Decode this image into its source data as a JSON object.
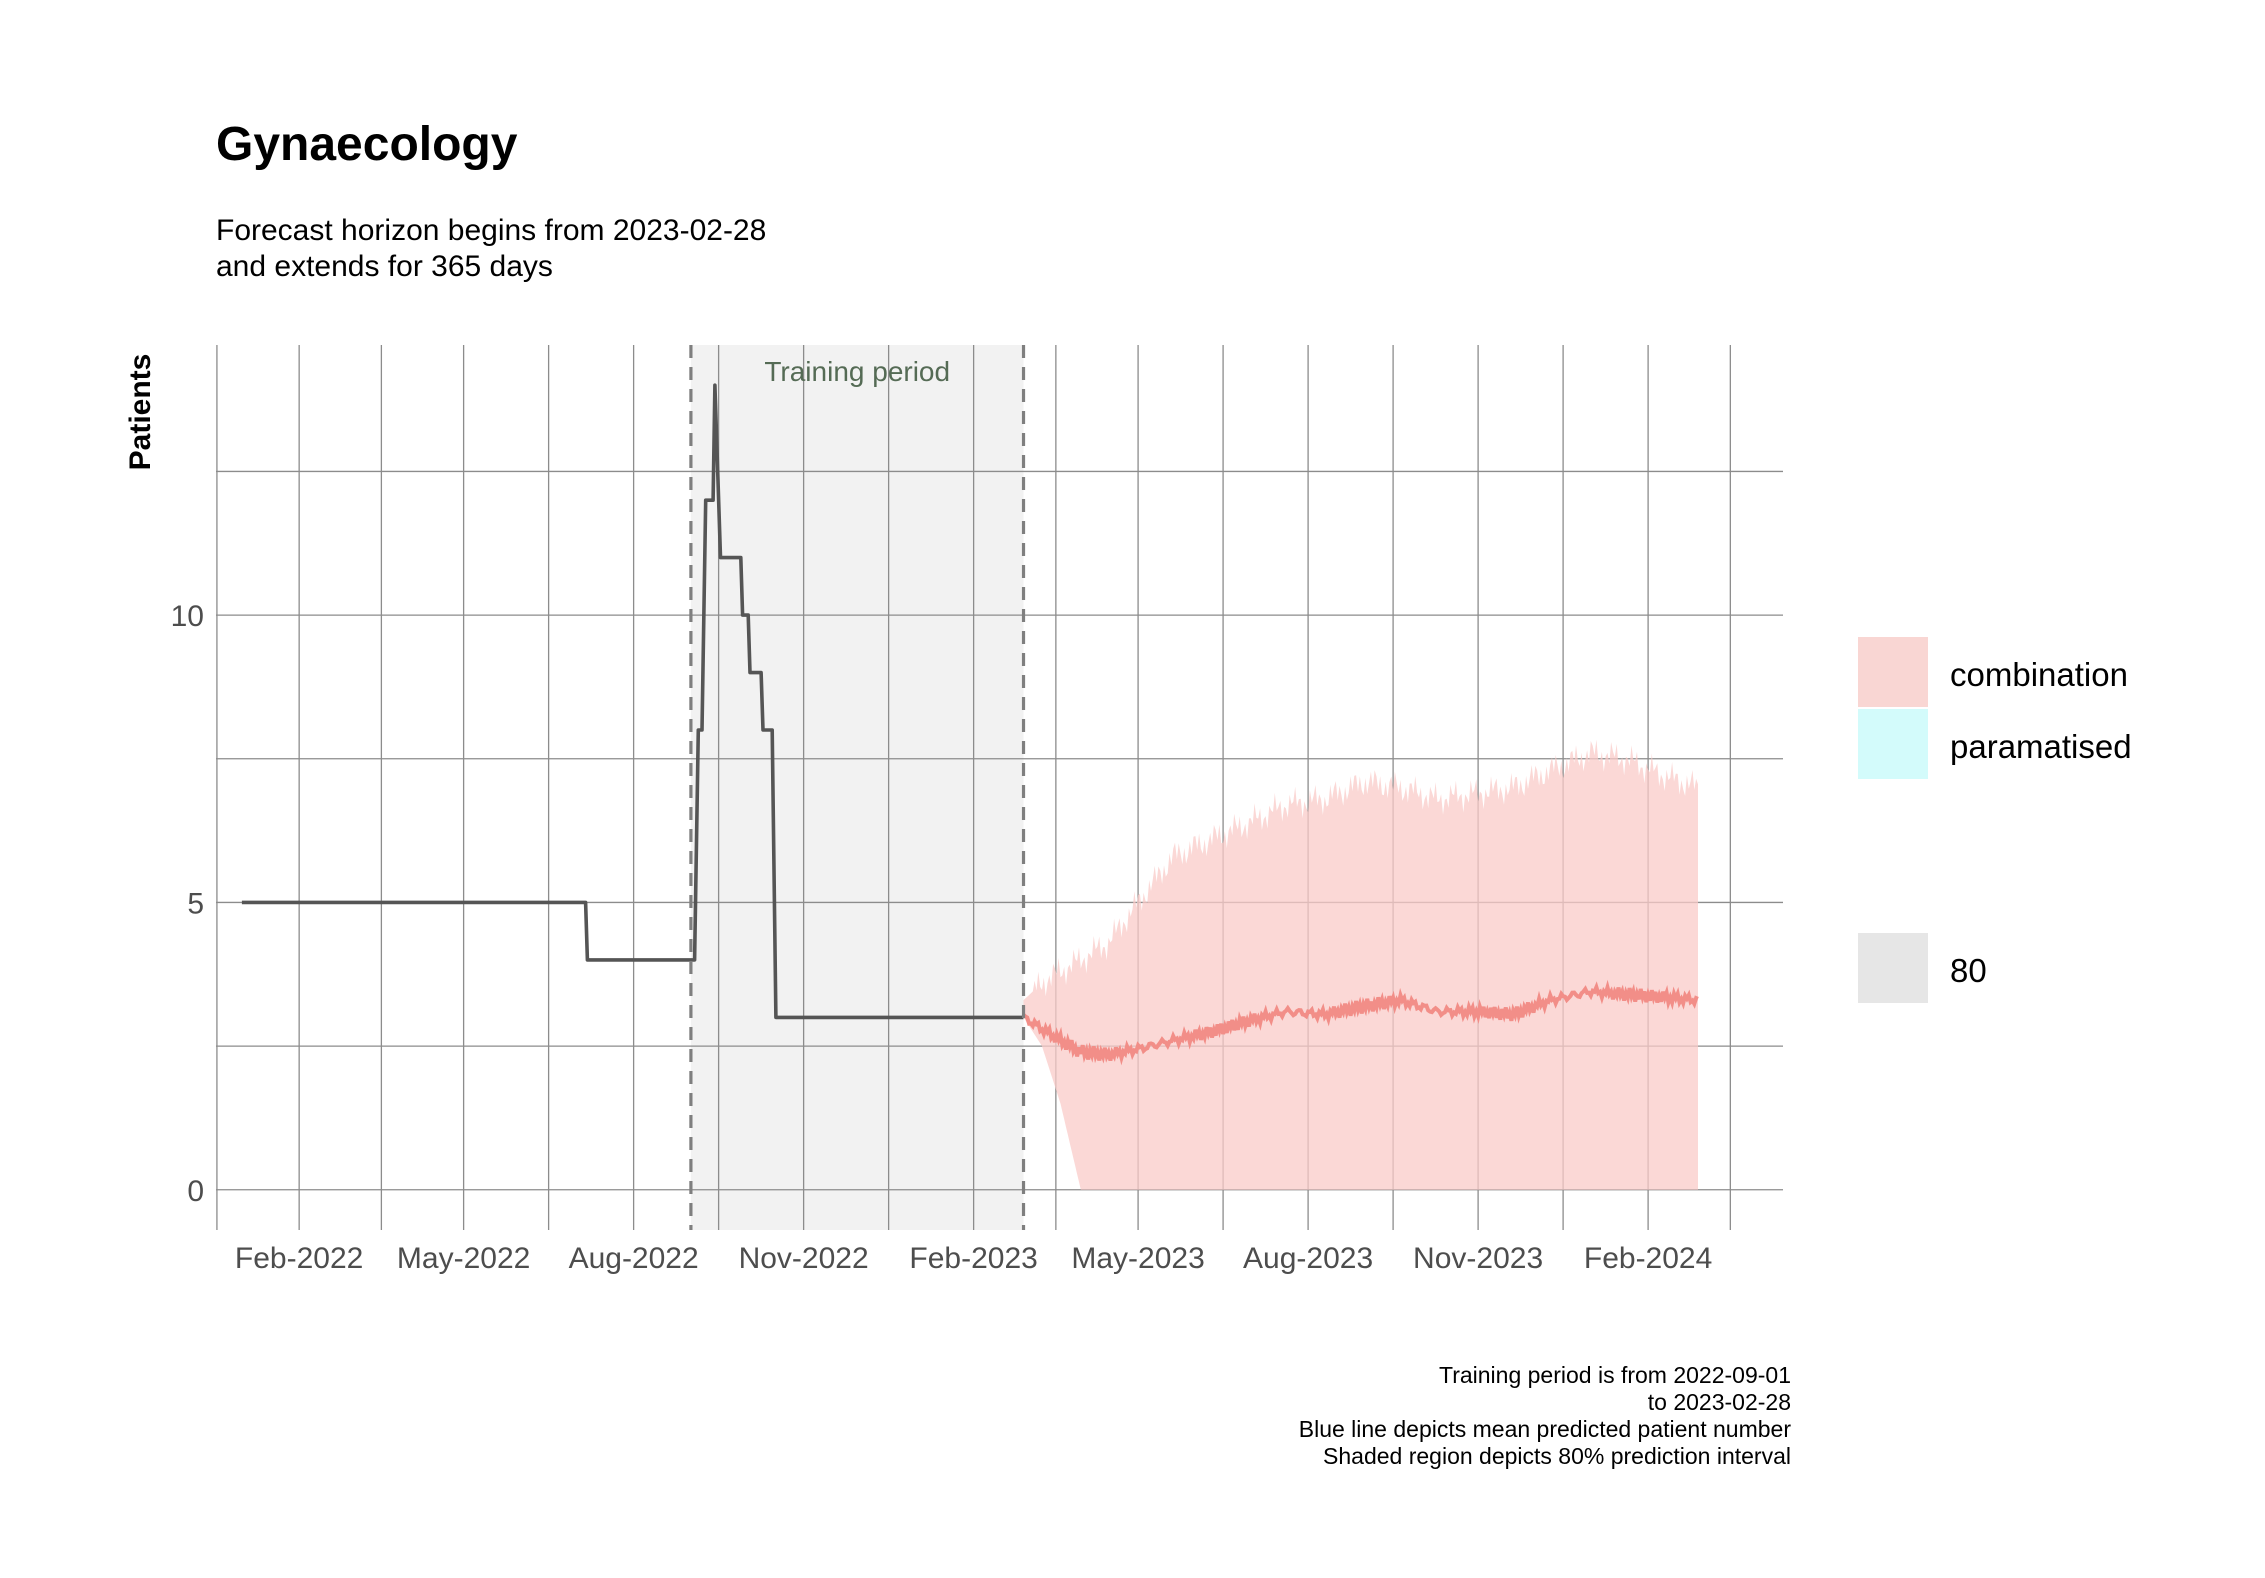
{
  "chart_data": {
    "type": "line",
    "title": "Gynaecology",
    "subtitle": [
      "Forecast horizon begins from 2023-02-28",
      "and extends for 365 days"
    ],
    "ylabel": "Patients",
    "xlabel": "",
    "ylim": [
      -0.7,
      14.7
    ],
    "y_ticks": [
      0,
      5,
      10
    ],
    "x_range": [
      "2021-12-18",
      "2024-04-14"
    ],
    "x_ticks": [
      {
        "date": "2022-02-01",
        "label": "Feb-2022"
      },
      {
        "date": "2022-05-01",
        "label": "May-2022"
      },
      {
        "date": "2022-08-01",
        "label": "Aug-2022"
      },
      {
        "date": "2022-11-01",
        "label": "Nov-2022"
      },
      {
        "date": "2023-02-01",
        "label": "Feb-2023"
      },
      {
        "date": "2023-05-01",
        "label": "May-2023"
      },
      {
        "date": "2023-08-01",
        "label": "Aug-2023"
      },
      {
        "date": "2023-11-01",
        "label": "Nov-2023"
      },
      {
        "date": "2024-02-01",
        "label": "Feb-2024"
      }
    ],
    "grid": true,
    "training_period": {
      "start": "2022-09-01",
      "end": "2023-02-28",
      "label": "Training period"
    },
    "observed": {
      "name": "observed",
      "color": "#555555",
      "points": [
        [
          "2022-01-01",
          5
        ],
        [
          "2022-07-06",
          5
        ],
        [
          "2022-07-07",
          4
        ],
        [
          "2022-09-03",
          4
        ],
        [
          "2022-09-05",
          8
        ],
        [
          "2022-09-07",
          8
        ],
        [
          "2022-09-09",
          12
        ],
        [
          "2022-09-13",
          12
        ],
        [
          "2022-09-14",
          14
        ],
        [
          "2022-09-17",
          11
        ],
        [
          "2022-09-28",
          11
        ],
        [
          "2022-09-29",
          10
        ],
        [
          "2022-10-02",
          10
        ],
        [
          "2022-10-03",
          9
        ],
        [
          "2022-10-09",
          9
        ],
        [
          "2022-10-10",
          8
        ],
        [
          "2022-10-15",
          8
        ],
        [
          "2022-10-17",
          3
        ],
        [
          "2023-02-28",
          3
        ]
      ]
    },
    "forecast": {
      "name": "combination",
      "line_color": "#f28e88",
      "band_color": "#f9cbc8",
      "interval": "80%",
      "points": [
        {
          "date": "2023-02-28",
          "mean": 3.0,
          "lower": 3.0,
          "upper": 3.3
        },
        {
          "date": "2023-03-10",
          "mean": 2.8,
          "lower": 2.5,
          "upper": 3.6
        },
        {
          "date": "2023-03-20",
          "mean": 2.6,
          "lower": 1.5,
          "upper": 3.8
        },
        {
          "date": "2023-03-31",
          "mean": 2.4,
          "lower": 0.0,
          "upper": 4.0
        },
        {
          "date": "2023-04-15",
          "mean": 2.35,
          "lower": 0.0,
          "upper": 4.3
        },
        {
          "date": "2023-05-01",
          "mean": 2.45,
          "lower": 0.0,
          "upper": 5.0
        },
        {
          "date": "2023-05-20",
          "mean": 2.6,
          "lower": 0.0,
          "upper": 5.8
        },
        {
          "date": "2023-06-10",
          "mean": 2.75,
          "lower": 0.0,
          "upper": 6.1
        },
        {
          "date": "2023-07-01",
          "mean": 2.95,
          "lower": 0.0,
          "upper": 6.4
        },
        {
          "date": "2023-07-20",
          "mean": 3.1,
          "lower": 0.0,
          "upper": 6.7
        },
        {
          "date": "2023-08-10",
          "mean": 3.05,
          "lower": 0.0,
          "upper": 6.8
        },
        {
          "date": "2023-09-01",
          "mean": 3.2,
          "lower": 0.0,
          "upper": 7.1
        },
        {
          "date": "2023-09-20",
          "mean": 3.3,
          "lower": 0.0,
          "upper": 7.0
        },
        {
          "date": "2023-10-10",
          "mean": 3.1,
          "lower": 0.0,
          "upper": 6.8
        },
        {
          "date": "2023-11-01",
          "mean": 3.1,
          "lower": 0.0,
          "upper": 6.9
        },
        {
          "date": "2023-11-20",
          "mean": 3.05,
          "lower": 0.0,
          "upper": 7.0
        },
        {
          "date": "2023-12-10",
          "mean": 3.3,
          "lower": 0.0,
          "upper": 7.3
        },
        {
          "date": "2024-01-01",
          "mean": 3.45,
          "lower": 0.0,
          "upper": 7.6
        },
        {
          "date": "2024-01-20",
          "mean": 3.4,
          "lower": 0.0,
          "upper": 7.5
        },
        {
          "date": "2024-02-10",
          "mean": 3.35,
          "lower": 0.0,
          "upper": 7.2
        },
        {
          "date": "2024-02-28",
          "mean": 3.3,
          "lower": 0.0,
          "upper": 7.0
        }
      ]
    },
    "legend": {
      "position": "right",
      "series": [
        {
          "label": "combination",
          "color": "#f9d6d3"
        },
        {
          "label": "paramatised",
          "color": "#d3fbfb"
        }
      ],
      "interval": {
        "label": "80",
        "color": "#e6e6e6"
      }
    },
    "caption": [
      "Training period is from 2022-09-01",
      "to 2023-02-28",
      "Blue line depicts mean predicted patient number",
      "Shaded region depicts 80% prediction interval"
    ]
  }
}
